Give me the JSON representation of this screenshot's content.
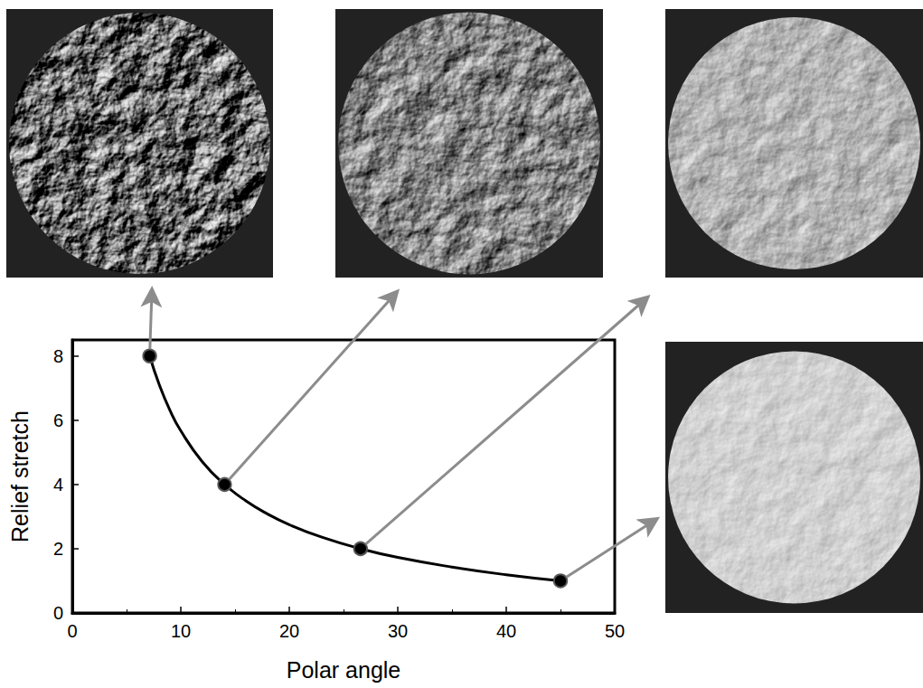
{
  "chart_data": {
    "type": "line",
    "xlabel": "Polar angle",
    "ylabel": "Relief stretch",
    "xlim": [
      0,
      50
    ],
    "xticks": [
      0,
      10,
      20,
      30,
      40,
      50
    ],
    "ylim": [
      0,
      8.5
    ],
    "yticks": [
      0,
      2,
      4,
      6,
      8
    ],
    "grid": false,
    "series": [
      {
        "type": "line",
        "color": "#000000",
        "marker": "none",
        "line_style": "solid",
        "x": [
          7.13,
          8,
          9,
          10,
          12,
          14.04,
          16,
          18,
          20,
          23,
          26.57,
          30,
          35,
          40,
          45
        ],
        "values": [
          8,
          7.12,
          6.31,
          5.67,
          4.7,
          4,
          3.49,
          3.08,
          2.75,
          2.36,
          2,
          1.73,
          1.43,
          1.19,
          1
        ]
      },
      {
        "type": "scatter",
        "color": "#000000",
        "marker": "circle",
        "x": [
          7.13,
          14.04,
          26.57,
          45
        ],
        "values": [
          8,
          4,
          2,
          1
        ]
      }
    ]
  }
}
